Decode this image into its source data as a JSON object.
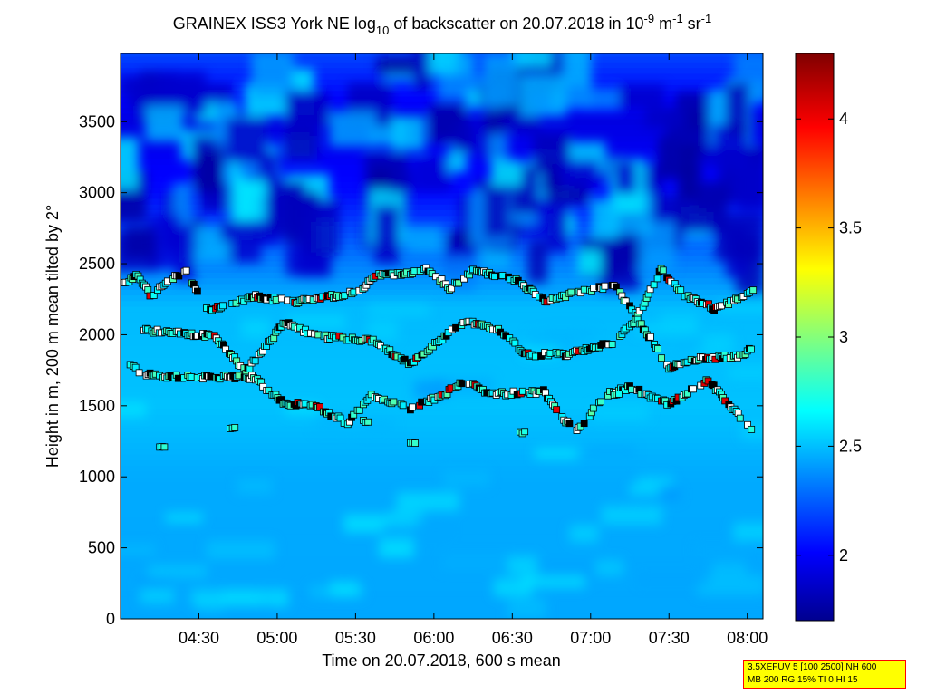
{
  "chart_data": {
    "type": "heatmap",
    "title": {
      "prefix": "GRAINEX ISS3 York NE log",
      "prefix_sub": "10",
      "mid": " of backscatter on 20.07.2018 in 10",
      "exp1": "-9",
      "unit1": " m",
      "exp2": "-1",
      "unit2": " sr",
      "exp3": "-1"
    },
    "xlabel": "Time on 20.07.2018, 600 s mean",
    "ylabel": "Height in m, 200 m mean tilted by 2°",
    "x_ticks": [
      "04:30",
      "05:00",
      "05:30",
      "06:00",
      "06:30",
      "07:00",
      "07:30",
      "08:00"
    ],
    "x_tick_hours": [
      4.5,
      5.0,
      5.5,
      6.0,
      6.5,
      7.0,
      7.5,
      8.0
    ],
    "xlim_hours": [
      4.0,
      8.1
    ],
    "y_ticks": [
      "0",
      "500",
      "1000",
      "1500",
      "2000",
      "2500",
      "3000",
      "3500"
    ],
    "y_tick_values": [
      0,
      500,
      1000,
      1500,
      2000,
      2500,
      3000,
      3500
    ],
    "ylim": [
      0,
      3980
    ],
    "colorbar": {
      "ticks": [
        "2",
        "2.5",
        "3",
        "3.5",
        "4"
      ],
      "tick_values": [
        2,
        2.5,
        3,
        3.5,
        4
      ],
      "range": [
        1.7,
        4.3
      ]
    },
    "field_profile": [
      {
        "height": 0,
        "value": 2.45
      },
      {
        "height": 1000,
        "value": 2.46
      },
      {
        "height": 1500,
        "value": 2.52
      },
      {
        "height": 2200,
        "value": 2.5
      },
      {
        "height": 2600,
        "value": 2.3
      },
      {
        "height": 3000,
        "value": 2.05
      },
      {
        "height": 3500,
        "value": 1.95
      },
      {
        "height": 3980,
        "value": 2.2
      }
    ],
    "layer_markers": [
      {
        "name": "upper",
        "points": [
          [
            4.02,
            2360
          ],
          [
            4.1,
            2420
          ],
          [
            4.2,
            2270
          ],
          [
            4.3,
            2380
          ],
          [
            4.42,
            2440
          ],
          [
            4.55,
            2180
          ],
          [
            4.7,
            2200
          ],
          [
            4.85,
            2270
          ],
          [
            5.1,
            2230
          ],
          [
            5.3,
            2260
          ],
          [
            5.5,
            2300
          ],
          [
            5.65,
            2420
          ],
          [
            5.85,
            2430
          ],
          [
            5.95,
            2470
          ],
          [
            6.1,
            2330
          ],
          [
            6.25,
            2450
          ],
          [
            6.4,
            2420
          ],
          [
            6.55,
            2370
          ],
          [
            6.72,
            2230
          ],
          [
            6.9,
            2300
          ],
          [
            7.15,
            2340
          ],
          [
            7.3,
            2130
          ],
          [
            7.45,
            2460
          ],
          [
            7.6,
            2280
          ],
          [
            7.8,
            2180
          ],
          [
            7.95,
            2260
          ],
          [
            8.05,
            2320
          ]
        ]
      },
      {
        "name": "middle",
        "points": [
          [
            4.15,
            2030
          ],
          [
            4.6,
            1990
          ],
          [
            4.8,
            1740
          ],
          [
            5.05,
            2090
          ],
          [
            5.25,
            1990
          ],
          [
            5.6,
            1960
          ],
          [
            5.85,
            1800
          ],
          [
            6.2,
            2100
          ],
          [
            6.4,
            2040
          ],
          [
            6.6,
            1860
          ],
          [
            6.85,
            1860
          ],
          [
            7.15,
            1950
          ],
          [
            7.3,
            2110
          ],
          [
            7.5,
            1770
          ],
          [
            7.7,
            1830
          ],
          [
            7.95,
            1850
          ],
          [
            8.05,
            1910
          ]
        ]
      },
      {
        "name": "lower",
        "points": [
          [
            4.05,
            1780
          ],
          [
            4.2,
            1710
          ],
          [
            4.55,
            1700
          ],
          [
            4.85,
            1700
          ],
          [
            5.05,
            1510
          ],
          [
            5.2,
            1520
          ],
          [
            5.45,
            1380
          ],
          [
            5.6,
            1580
          ],
          [
            5.85,
            1480
          ],
          [
            6.05,
            1570
          ],
          [
            6.2,
            1680
          ],
          [
            6.35,
            1580
          ],
          [
            6.7,
            1600
          ],
          [
            6.9,
            1310
          ],
          [
            7.1,
            1580
          ],
          [
            7.25,
            1630
          ],
          [
            7.5,
            1510
          ],
          [
            7.75,
            1680
          ],
          [
            8.05,
            1300
          ]
        ]
      },
      {
        "name": "isolated",
        "points": [
          [
            4.25,
            1210
          ],
          [
            4.7,
            1340
          ],
          [
            5.55,
            1390
          ],
          [
            5.85,
            1240
          ],
          [
            6.55,
            1310
          ],
          [
            7.15,
            1580
          ]
        ]
      }
    ]
  },
  "info_box": {
    "line1": "3.5XEFUV 5 [100 2500] NH 600",
    "line2": "MB 200 RG 15% TI 0 HI 15"
  }
}
